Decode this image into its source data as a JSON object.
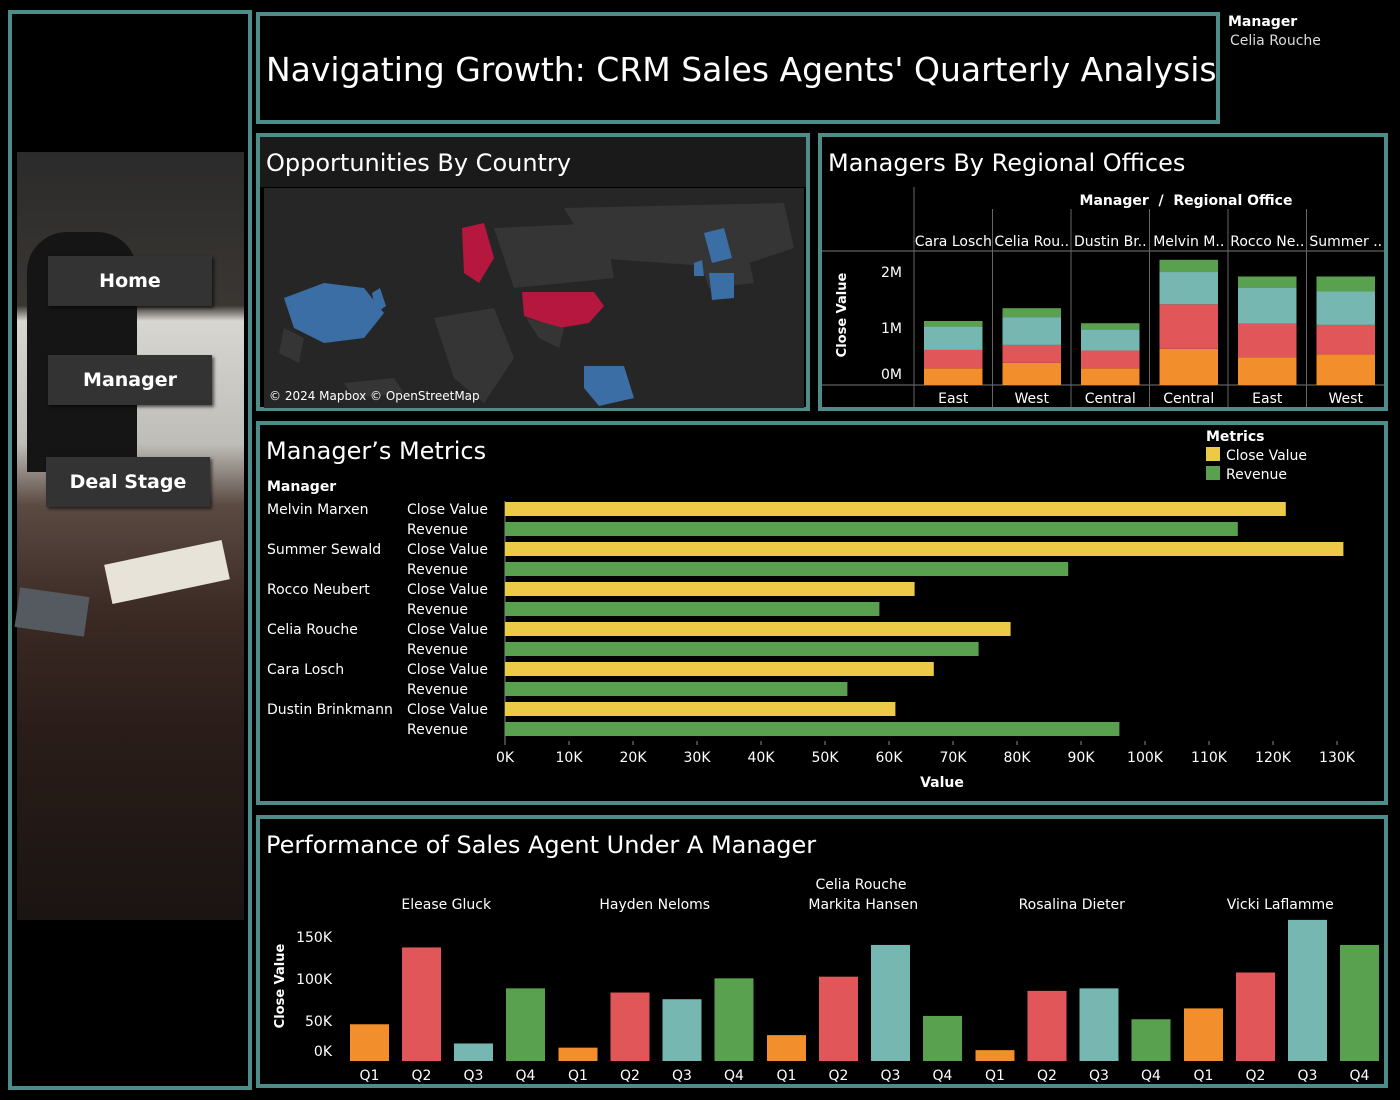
{
  "colors": {
    "accent": "#4e8c89",
    "q1": "#f28e2b",
    "q2": "#e15759",
    "q3": "#76b7b2",
    "q4": "#59a14f",
    "close_value": "#edc948",
    "revenue": "#59a14f",
    "highlight_country": "#b5173e",
    "country_blue": "#3b6ea5"
  },
  "header": {
    "title": "Navigating Growth: CRM Sales Agents' Quarterly Analysis",
    "filter_label": "Manager",
    "filter_value": "Celia Rouche"
  },
  "nav": {
    "home": "Home",
    "manager": "Manager",
    "deal_stage": "Deal Stage"
  },
  "map": {
    "title": "Opportunities By Country",
    "attribution": "© 2024 Mapbox © OpenStreetMap"
  },
  "regional": {
    "title": "Managers By Regional Offices",
    "header": "Manager  /  Regional Office",
    "y_label": "Close Value",
    "y_ticks": [
      "2M",
      "1M",
      "0M"
    ]
  },
  "metrics": {
    "title": "Manager’s Metrics",
    "manager_header": "Manager",
    "legend_title": "Metrics",
    "legend_close": "Close Value",
    "legend_revenue": "Revenue",
    "x_label": "Value",
    "x_ticks": [
      "0K",
      "10K",
      "20K",
      "30K",
      "40K",
      "50K",
      "60K",
      "70K",
      "80K",
      "90K",
      "100K",
      "110K",
      "120K",
      "130K"
    ]
  },
  "performance": {
    "title": "Performance of Sales Agent Under A Manager",
    "manager_name": "Celia Rouche",
    "y_label": "Close Value",
    "y_ticks": [
      "150K",
      "100K",
      "50K",
      "0K"
    ]
  },
  "chart_data": [
    {
      "type": "bar",
      "title": "Managers By Regional Offices",
      "stacked": true,
      "ylabel": "Close Value",
      "ylim": [
        0,
        2300000
      ],
      "categories": [
        {
          "manager": "Cara Losch",
          "office": "East"
        },
        {
          "manager": "Celia Rou..",
          "office": "West"
        },
        {
          "manager": "Dustin Br..",
          "office": "Central"
        },
        {
          "manager": "Melvin M..",
          "office": "Central"
        },
        {
          "manager": "Rocco Ne..",
          "office": "East"
        },
        {
          "manager": "Summer ..",
          "office": "West"
        }
      ],
      "series": [
        {
          "name": "Q1",
          "values": [
            300000,
            400000,
            300000,
            650000,
            500000,
            550000
          ]
        },
        {
          "name": "Q2",
          "values": [
            330000,
            320000,
            320000,
            800000,
            600000,
            530000
          ]
        },
        {
          "name": "Q3",
          "values": [
            420000,
            500000,
            380000,
            580000,
            650000,
            600000
          ]
        },
        {
          "name": "Q4",
          "values": [
            100000,
            160000,
            110000,
            220000,
            200000,
            270000
          ]
        }
      ]
    },
    {
      "type": "bar",
      "title": "Manager’s Metrics",
      "orientation": "horizontal",
      "xlabel": "Value",
      "xlim": [
        0,
        135000
      ],
      "categories": [
        "Melvin Marxen",
        "Summer Sewald",
        "Rocco Neubert",
        "Celia Rouche",
        "Cara Losch",
        "Dustin Brinkmann"
      ],
      "series": [
        {
          "name": "Close Value",
          "values": [
            122000,
            131000,
            64000,
            79000,
            67000,
            61000
          ]
        },
        {
          "name": "Revenue",
          "values": [
            114500,
            88000,
            58500,
            74000,
            53500,
            96000
          ]
        }
      ]
    },
    {
      "type": "bar",
      "title": "Performance of Sales Agent Under A Manager",
      "ylabel": "Close Value",
      "ylim": [
        0,
        155000
      ],
      "groups": [
        "Elease Gluck",
        "Hayden Neloms",
        "Markita Hansen",
        "Rosalina Dieter",
        "Vicki Laflamme"
      ],
      "quarters": [
        "Q1",
        "Q2",
        "Q3",
        "Q4"
      ],
      "values": [
        [
          44000,
          136000,
          21000,
          87000
        ],
        [
          16000,
          82000,
          74000,
          99000
        ],
        [
          31000,
          101000,
          139000,
          54000
        ],
        [
          13000,
          84000,
          87000,
          50000
        ],
        [
          63000,
          106000,
          169000,
          139000
        ]
      ]
    }
  ]
}
